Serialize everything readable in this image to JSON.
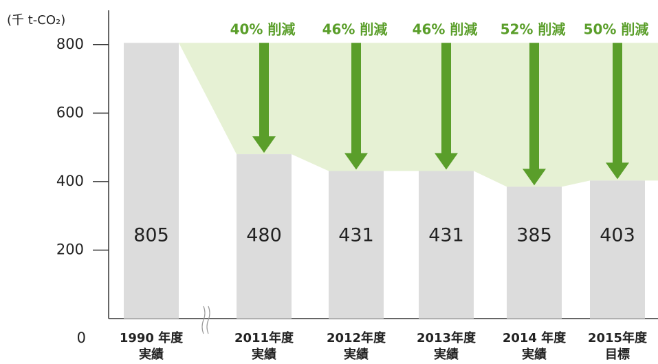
{
  "chart_data": {
    "type": "bar",
    "y_axis_label": "(千 t-CO₂)",
    "categories": [
      [
        "1990 年度",
        "実績"
      ],
      [
        "2011年度",
        "実績"
      ],
      [
        "2012年度",
        "実績"
      ],
      [
        "2013年度",
        "実績"
      ],
      [
        "2014 年度",
        "実績"
      ],
      [
        "2015年度",
        "目標"
      ]
    ],
    "values": [
      805,
      480,
      431,
      431,
      385,
      403
    ],
    "reduction_labels": [
      null,
      "40% 削減",
      "46% 削減",
      "46% 削減",
      "52% 削減",
      "50% 削減"
    ],
    "color": "#dcdcdc",
    "arrow_color": "#5a9e2a",
    "area_color": "#e6f1d4",
    "ylim": [
      0,
      900
    ],
    "yticks": [
      0,
      200,
      400,
      600,
      800
    ]
  }
}
